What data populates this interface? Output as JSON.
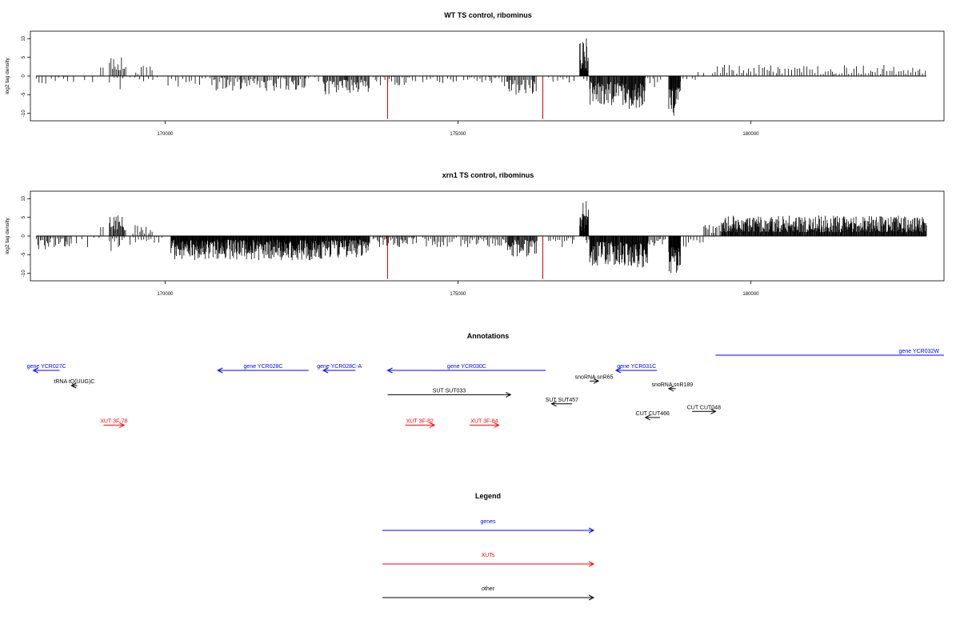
{
  "chart_data": [
    {
      "type": "bar",
      "title": "WT TS control, ribominus",
      "ylabel": "log2 tag density",
      "xlabel": "",
      "xlim": [
        167700,
        183300
      ],
      "ylim": [
        -12,
        12
      ],
      "x_ticks": [
        170000,
        175000,
        180000
      ],
      "x_tick_labels": [
        "170000",
        "175000",
        "180000"
      ],
      "y_ticks": [
        -10,
        -5,
        0,
        5,
        10
      ],
      "y_tick_labels": [
        "-10",
        "-5",
        "0",
        "5",
        "10"
      ],
      "marker_color": "#cc0000",
      "bar_color": "#000000",
      "markers": [
        {
          "x": 173800,
          "y": -11.5
        },
        {
          "x": 176450,
          "y": -11.5
        }
      ],
      "segments": [
        {
          "start": 167800,
          "end": 168400,
          "low": -2.5,
          "high": -0.3,
          "step": 70,
          "seed": 11
        },
        {
          "start": 168300,
          "end": 168900,
          "low": -2,
          "high": -0.2,
          "step": 160,
          "seed": 12
        },
        {
          "start": 168900,
          "end": 168950,
          "low": 1,
          "high": 2.5,
          "step": 40,
          "seed": 13
        },
        {
          "start": 169050,
          "end": 169330,
          "low": 1.5,
          "high": 5,
          "step": 22,
          "seed": 14
        },
        {
          "start": 169050,
          "end": 169330,
          "low": -4,
          "high": -0.5,
          "step": 60,
          "seed": 15
        },
        {
          "start": 169500,
          "end": 169780,
          "low": 0.5,
          "high": 3,
          "step": 45,
          "seed": 16
        },
        {
          "start": 169400,
          "end": 169950,
          "low": -1.5,
          "high": -0.3,
          "step": 90,
          "seed": 17
        },
        {
          "start": 170050,
          "end": 170800,
          "low": -3,
          "high": -0.5,
          "step": 55,
          "seed": 18
        },
        {
          "start": 170800,
          "end": 172400,
          "low": -4,
          "high": -0.5,
          "step": 24,
          "seed": 19
        },
        {
          "start": 172400,
          "end": 172650,
          "low": -1.5,
          "high": -0.3,
          "step": 80,
          "seed": 20
        },
        {
          "start": 172700,
          "end": 173500,
          "low": -5,
          "high": -1,
          "step": 16,
          "seed": 21
        },
        {
          "start": 173550,
          "end": 174300,
          "low": -2.5,
          "high": -0.3,
          "step": 40,
          "seed": 22
        },
        {
          "start": 174400,
          "end": 175000,
          "low": -2,
          "high": -0.3,
          "step": 60,
          "seed": 23
        },
        {
          "start": 175100,
          "end": 175550,
          "low": -1.8,
          "high": -0.3,
          "step": 50,
          "seed": 24
        },
        {
          "start": 175550,
          "end": 175850,
          "low": -3,
          "high": -0.5,
          "step": 40,
          "seed": 25
        },
        {
          "start": 175850,
          "end": 176350,
          "low": -5,
          "high": -1,
          "step": 20,
          "seed": 26
        },
        {
          "start": 176550,
          "end": 177000,
          "low": -2,
          "high": -0.3,
          "step": 70,
          "seed": 27
        },
        {
          "start": 177080,
          "end": 177230,
          "low": 1,
          "high": 11,
          "step": 6,
          "seed": 28
        },
        {
          "start": 177150,
          "end": 177280,
          "low": -1.5,
          "high": -0.2,
          "step": 40,
          "seed": 29
        },
        {
          "start": 177250,
          "end": 177800,
          "low": -8,
          "high": -1.5,
          "step": 11,
          "seed": 30
        },
        {
          "start": 177800,
          "end": 178200,
          "low": -9,
          "high": -2,
          "step": 9,
          "seed": 31
        },
        {
          "start": 178200,
          "end": 178500,
          "low": -3,
          "high": -0.5,
          "step": 40,
          "seed": 32
        },
        {
          "start": 178600,
          "end": 178800,
          "low": -11,
          "high": -3,
          "step": 8,
          "seed": 33
        },
        {
          "start": 178800,
          "end": 179100,
          "low": -2.5,
          "high": -0.5,
          "step": 70,
          "seed": 34
        },
        {
          "start": 179100,
          "end": 179300,
          "low": 0.5,
          "high": 2.5,
          "step": 120,
          "seed": 35
        },
        {
          "start": 179350,
          "end": 183000,
          "low": 0.5,
          "high": 3,
          "step": 42,
          "seed": 36
        }
      ]
    },
    {
      "type": "bar",
      "title": "xrn1 TS control, ribominus",
      "ylabel": "log2 tag density",
      "xlabel": "",
      "xlim": [
        167700,
        183300
      ],
      "ylim": [
        -12,
        12
      ],
      "x_ticks": [
        170000,
        175000,
        180000
      ],
      "x_tick_labels": [
        "170000",
        "175000",
        "180000"
      ],
      "y_ticks": [
        -10,
        -5,
        0,
        5,
        10
      ],
      "y_tick_labels": [
        "-10",
        "-5",
        "0",
        "5",
        "10"
      ],
      "marker_color": "#cc0000",
      "bar_color": "#000000",
      "markers": [
        {
          "x": 173800,
          "y": -11.5
        },
        {
          "x": 176450,
          "y": -11.5
        }
      ],
      "segments": [
        {
          "start": 167800,
          "end": 168400,
          "low": -4,
          "high": -0.5,
          "step": 24,
          "seed": 41
        },
        {
          "start": 168300,
          "end": 168900,
          "low": -3,
          "high": -0.3,
          "step": 80,
          "seed": 42
        },
        {
          "start": 168900,
          "end": 168950,
          "low": 1,
          "high": 3,
          "step": 30,
          "seed": 43
        },
        {
          "start": 169050,
          "end": 169330,
          "low": 1.5,
          "high": 6,
          "step": 14,
          "seed": 44
        },
        {
          "start": 169050,
          "end": 169330,
          "low": -4.5,
          "high": -0.5,
          "step": 30,
          "seed": 45
        },
        {
          "start": 169450,
          "end": 169780,
          "low": 0.5,
          "high": 3,
          "step": 35,
          "seed": 46
        },
        {
          "start": 169400,
          "end": 169950,
          "low": -2.5,
          "high": -0.3,
          "step": 45,
          "seed": 47
        },
        {
          "start": 170100,
          "end": 172700,
          "low": -6.5,
          "high": -1,
          "step": 7,
          "seed": 48
        },
        {
          "start": 172700,
          "end": 173500,
          "low": -6,
          "high": -1,
          "step": 9,
          "seed": 49
        },
        {
          "start": 173550,
          "end": 174300,
          "low": -3,
          "high": -0.3,
          "step": 22,
          "seed": 50
        },
        {
          "start": 174400,
          "end": 175000,
          "low": -3,
          "high": -0.3,
          "step": 30,
          "seed": 51
        },
        {
          "start": 175050,
          "end": 175850,
          "low": -3,
          "high": -0.5,
          "step": 25,
          "seed": 52
        },
        {
          "start": 175850,
          "end": 176350,
          "low": -5.5,
          "high": -1,
          "step": 12,
          "seed": 53
        },
        {
          "start": 176550,
          "end": 177000,
          "low": -3,
          "high": -0.3,
          "step": 35,
          "seed": 54
        },
        {
          "start": 177080,
          "end": 177230,
          "low": 1,
          "high": 10.5,
          "step": 5,
          "seed": 55
        },
        {
          "start": 177150,
          "end": 177280,
          "low": -2,
          "high": -0.2,
          "step": 30,
          "seed": 56
        },
        {
          "start": 177250,
          "end": 177800,
          "low": -8,
          "high": -1.5,
          "step": 9,
          "seed": 57
        },
        {
          "start": 177800,
          "end": 178250,
          "low": -8.5,
          "high": -2,
          "step": 8,
          "seed": 58
        },
        {
          "start": 178250,
          "end": 178550,
          "low": -3,
          "high": -0.5,
          "step": 25,
          "seed": 59
        },
        {
          "start": 178600,
          "end": 178800,
          "low": -11,
          "high": -3,
          "step": 7,
          "seed": 60
        },
        {
          "start": 178800,
          "end": 179200,
          "low": -3,
          "high": -0.5,
          "step": 40,
          "seed": 61
        },
        {
          "start": 179200,
          "end": 179500,
          "low": 0.5,
          "high": 3,
          "step": 30,
          "seed": 62
        },
        {
          "start": 179500,
          "end": 183000,
          "low": 1,
          "high": 5.5,
          "step": 9,
          "seed": 63
        }
      ]
    }
  ],
  "annotations": {
    "title": "Annotations",
    "features": [
      {
        "label": "gene YCR027C",
        "start": 167750,
        "end": 168200,
        "dir": "left",
        "color": "#0000ff",
        "row": 0
      },
      {
        "label": "gene YCR028C",
        "start": 170900,
        "end": 172450,
        "dir": "left",
        "color": "#0000ff",
        "row": 0
      },
      {
        "label": "gene YCR028C-A",
        "start": 172700,
        "end": 173250,
        "dir": "left",
        "color": "#0000ff",
        "row": 0
      },
      {
        "label": "gene YCR030C",
        "start": 173800,
        "end": 176500,
        "dir": "left",
        "color": "#0000ff",
        "row": 0
      },
      {
        "label": "gene YCR031C",
        "start": 177700,
        "end": 178400,
        "dir": "left",
        "color": "#0000ff",
        "row": 0
      },
      {
        "label": "gene YCR032W",
        "start": 179400,
        "end": 183300,
        "dir": "right",
        "color": "#0000ff",
        "row": -1
      },
      {
        "label": "tRNA tQ(UUG)C",
        "start": 168400,
        "end": 168500,
        "dir": "left",
        "color": "#000000",
        "row": 1
      },
      {
        "label": "snoRNA snR65",
        "start": 177250,
        "end": 177400,
        "dir": "right",
        "color": "#000000",
        "row": 0.7
      },
      {
        "label": "snoRNA snR189",
        "start": 178600,
        "end": 178720,
        "dir": "left",
        "color": "#000000",
        "row": 1.2
      },
      {
        "label": "SUT SUT033",
        "start": 173800,
        "end": 175900,
        "dir": "right",
        "color": "#000000",
        "row": 1.6
      },
      {
        "label": "SUT SUT457",
        "start": 176600,
        "end": 176950,
        "dir": "left",
        "color": "#000000",
        "row": 2.2
      },
      {
        "label": "CUT CUT466",
        "start": 178200,
        "end": 178450,
        "dir": "left",
        "color": "#000000",
        "row": 3.1
      },
      {
        "label": "CUT CUT048",
        "start": 179000,
        "end": 179400,
        "dir": "right",
        "color": "#000000",
        "row": 2.7
      },
      {
        "label": "XUT 3F-78",
        "start": 168950,
        "end": 169300,
        "dir": "right",
        "color": "#ff0000",
        "row": 3.6
      },
      {
        "label": "XUT 3F-82",
        "start": 174100,
        "end": 174600,
        "dir": "right",
        "color": "#ff0000",
        "row": 3.6
      },
      {
        "label": "XUT 3F-84",
        "start": 175200,
        "end": 175700,
        "dir": "right",
        "color": "#ff0000",
        "row": 3.6
      }
    ]
  },
  "legend": {
    "title": "Legend",
    "items": [
      {
        "label": "genes",
        "color": "#0000ff"
      },
      {
        "label": "XUTs",
        "color": "#ff0000"
      },
      {
        "label": "other",
        "color": "#000000"
      }
    ]
  }
}
